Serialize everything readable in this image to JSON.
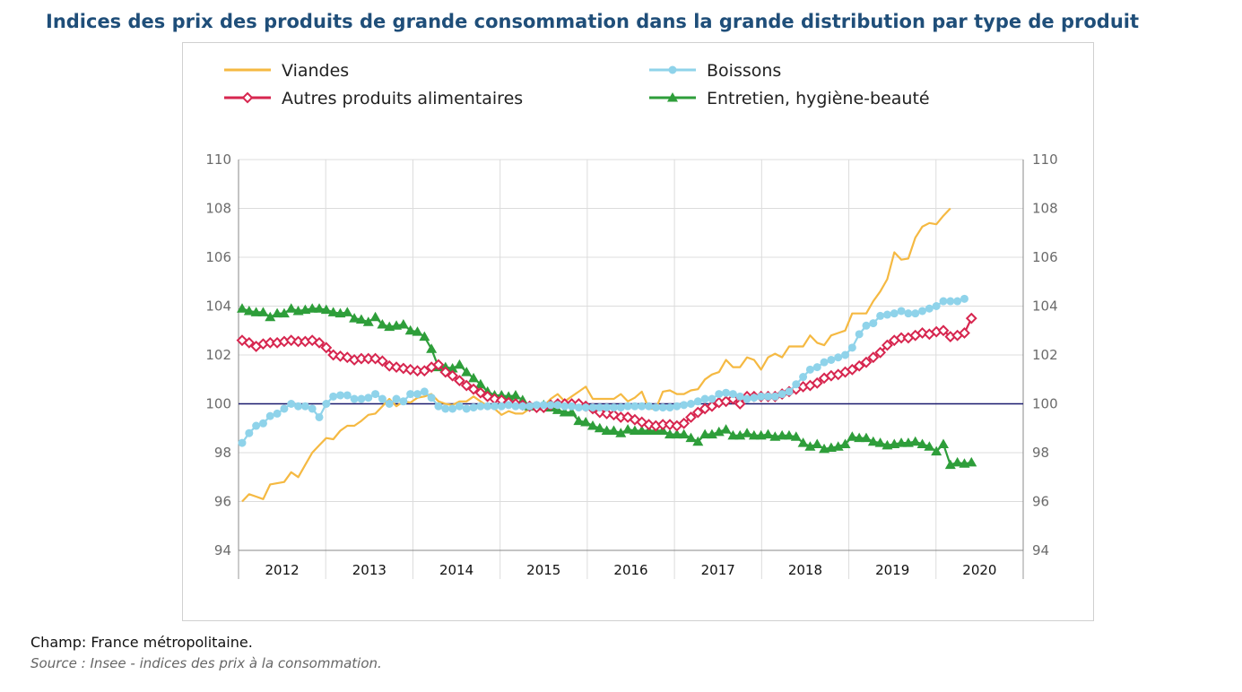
{
  "title": "Indices des prix des produits de grande consommation dans la grande distribution par type de produit",
  "footnote": "Champ: France métropolitaine.",
  "source": "Source : Insee - indices des prix à la consommation.",
  "chart_data": {
    "type": "line",
    "ylim": [
      94,
      110
    ],
    "yticks": [
      "94",
      "96",
      "98",
      "100",
      "102",
      "104",
      "106",
      "108",
      "110"
    ],
    "years": [
      "2012",
      "2013",
      "2014",
      "2015",
      "2016",
      "2017",
      "2018",
      "2019",
      "2020"
    ],
    "reference_line": 100,
    "grid": true,
    "legend_position": "top",
    "series": [
      {
        "name": "Viandes",
        "color": "#f5b942",
        "marker": "none",
        "values": [
          96.0,
          96.3,
          96.2,
          96.1,
          96.7,
          96.75,
          96.8,
          97.2,
          97.0,
          97.5,
          98.0,
          98.3,
          98.6,
          98.55,
          98.9,
          99.1,
          99.1,
          99.3,
          99.55,
          99.6,
          99.9,
          100.2,
          99.9,
          100.1,
          100.05,
          100.25,
          100.3,
          100.4,
          100.1,
          100.0,
          99.95,
          100.1,
          100.1,
          100.3,
          100.1,
          99.9,
          99.8,
          99.55,
          99.7,
          99.6,
          99.6,
          99.8,
          99.9,
          99.9,
          100.2,
          100.4,
          100.1,
          100.3,
          100.5,
          100.7,
          100.2,
          100.2,
          100.2,
          100.2,
          100.4,
          100.1,
          100.25,
          100.5,
          99.8,
          99.8,
          100.5,
          100.55,
          100.4,
          100.4,
          100.55,
          100.6,
          101.0,
          101.2,
          101.3,
          101.8,
          101.5,
          101.5,
          101.9,
          101.8,
          101.4,
          101.9,
          102.05,
          101.9,
          102.35,
          102.35,
          102.35,
          102.8,
          102.5,
          102.4,
          102.8,
          102.9,
          103.0,
          103.7,
          103.7,
          103.7,
          104.2,
          104.6,
          105.1,
          106.2,
          105.9,
          105.95,
          106.8,
          107.25,
          107.4,
          107.35,
          107.7,
          108.0
        ]
      },
      {
        "name": "Boissons",
        "color": "#8fd3ea",
        "marker": "circle",
        "values": [
          98.4,
          98.8,
          99.1,
          99.2,
          99.5,
          99.6,
          99.8,
          100.0,
          99.9,
          99.9,
          99.8,
          99.45,
          100.0,
          100.3,
          100.35,
          100.35,
          100.2,
          100.2,
          100.25,
          100.4,
          100.2,
          100.0,
          100.2,
          100.1,
          100.4,
          100.4,
          100.5,
          100.25,
          99.9,
          99.8,
          99.8,
          99.9,
          99.8,
          99.85,
          99.9,
          99.9,
          99.9,
          99.9,
          99.95,
          99.9,
          99.9,
          99.9,
          99.95,
          99.95,
          99.95,
          99.95,
          99.9,
          99.9,
          99.85,
          99.85,
          99.85,
          99.85,
          99.85,
          99.85,
          99.85,
          99.9,
          99.9,
          99.9,
          99.9,
          99.85,
          99.85,
          99.85,
          99.9,
          99.95,
          100.0,
          100.1,
          100.2,
          100.2,
          100.4,
          100.45,
          100.4,
          100.3,
          100.2,
          100.25,
          100.3,
          100.3,
          100.3,
          100.4,
          100.5,
          100.8,
          101.1,
          101.4,
          101.5,
          101.7,
          101.8,
          101.9,
          102.0,
          102.3,
          102.85,
          103.2,
          103.3,
          103.6,
          103.65,
          103.7,
          103.8,
          103.7,
          103.7,
          103.8,
          103.9,
          104.0,
          104.2,
          104.2,
          104.2,
          104.3
        ]
      },
      {
        "name": "Autres produits alimentaires",
        "color": "#d7264f",
        "marker": "diamond",
        "values": [
          102.6,
          102.5,
          102.35,
          102.45,
          102.5,
          102.5,
          102.55,
          102.6,
          102.55,
          102.55,
          102.6,
          102.5,
          102.3,
          102.0,
          101.95,
          101.9,
          101.8,
          101.85,
          101.85,
          101.85,
          101.75,
          101.55,
          101.5,
          101.45,
          101.4,
          101.35,
          101.35,
          101.5,
          101.6,
          101.3,
          101.15,
          100.95,
          100.75,
          100.6,
          100.45,
          100.3,
          100.2,
          100.15,
          100.05,
          100.0,
          99.95,
          99.9,
          99.85,
          99.85,
          99.95,
          100.0,
          100.0,
          100.0,
          100.0,
          99.9,
          99.8,
          99.65,
          99.6,
          99.55,
          99.45,
          99.45,
          99.35,
          99.25,
          99.15,
          99.1,
          99.15,
          99.15,
          99.1,
          99.2,
          99.45,
          99.65,
          99.8,
          99.9,
          100.05,
          100.1,
          100.2,
          100.0,
          100.3,
          100.3,
          100.3,
          100.3,
          100.3,
          100.4,
          100.5,
          100.6,
          100.7,
          100.75,
          100.85,
          101.05,
          101.15,
          101.2,
          101.3,
          101.4,
          101.55,
          101.7,
          101.9,
          102.1,
          102.4,
          102.6,
          102.7,
          102.7,
          102.8,
          102.9,
          102.85,
          102.95,
          103.0,
          102.75,
          102.8,
          102.9,
          103.5
        ]
      },
      {
        "name": "Entretien, hygiène-beauté",
        "color": "#2e9e3a",
        "marker": "triangle",
        "values": [
          103.9,
          103.8,
          103.75,
          103.75,
          103.55,
          103.7,
          103.7,
          103.9,
          103.8,
          103.85,
          103.9,
          103.9,
          103.85,
          103.75,
          103.7,
          103.75,
          103.5,
          103.45,
          103.35,
          103.55,
          103.25,
          103.15,
          103.2,
          103.25,
          103.0,
          102.95,
          102.75,
          102.25,
          101.5,
          101.5,
          101.45,
          101.6,
          101.3,
          101.05,
          100.8,
          100.5,
          100.35,
          100.35,
          100.3,
          100.35,
          100.15,
          99.9,
          99.9,
          99.95,
          99.85,
          99.75,
          99.65,
          99.65,
          99.3,
          99.25,
          99.1,
          99.0,
          98.9,
          98.9,
          98.8,
          98.95,
          98.9,
          98.9,
          98.9,
          98.9,
          98.9,
          98.75,
          98.75,
          98.75,
          98.6,
          98.45,
          98.75,
          98.75,
          98.85,
          98.95,
          98.7,
          98.7,
          98.8,
          98.7,
          98.7,
          98.75,
          98.65,
          98.7,
          98.7,
          98.65,
          98.4,
          98.25,
          98.35,
          98.15,
          98.2,
          98.25,
          98.35,
          98.65,
          98.6,
          98.6,
          98.45,
          98.4,
          98.3,
          98.35,
          98.4,
          98.4,
          98.45,
          98.35,
          98.25,
          98.05,
          98.35,
          97.5,
          97.6,
          97.55,
          97.6
        ]
      }
    ]
  }
}
